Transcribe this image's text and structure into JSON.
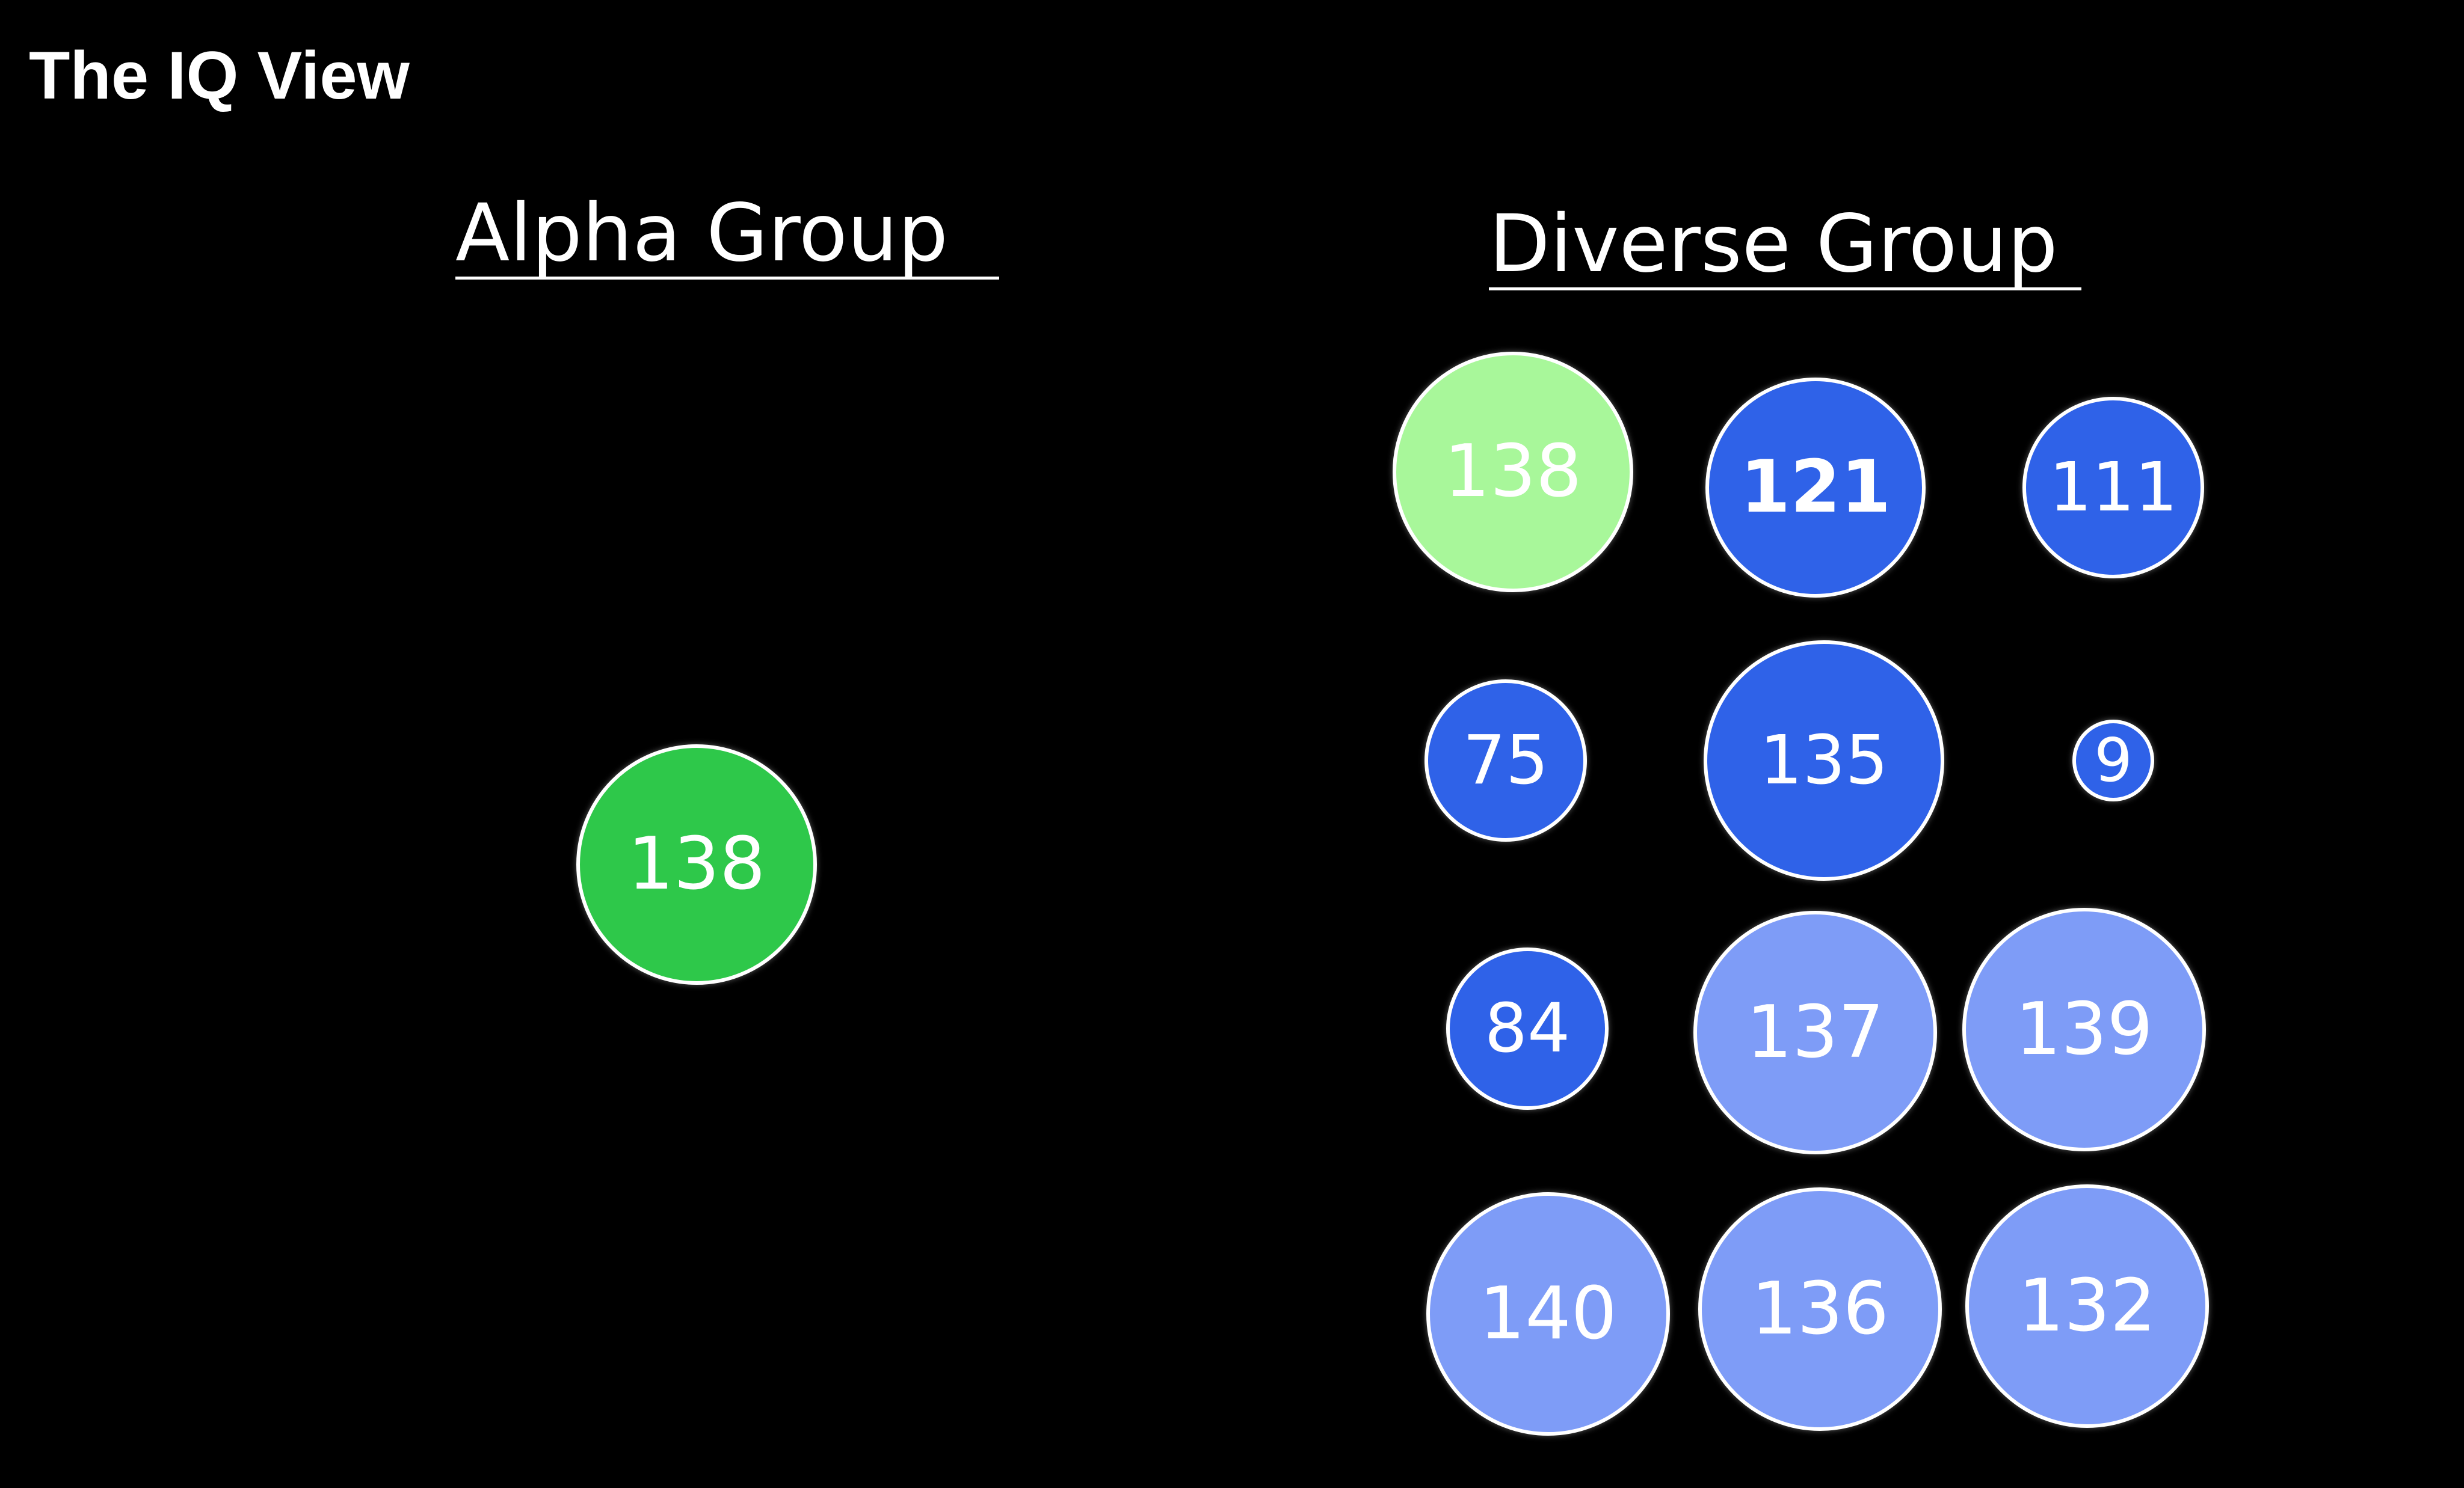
{
  "title": "The IQ View",
  "colors": {
    "background": "#000000",
    "alpha_member": "#2ec84a",
    "diverse_top_scorer": "#a8f79a",
    "low_score": "#2f62e8",
    "high_score": "#7e9cf7",
    "border": "#ffffff"
  },
  "groups": {
    "alpha": {
      "heading": "Alpha Group",
      "members": [
        {
          "iq": "138",
          "color": "#2ec84a"
        }
      ]
    },
    "diverse": {
      "heading": "Diverse Group",
      "members": [
        {
          "iq": "138",
          "color": "#a8f79a"
        },
        {
          "iq": "121",
          "color": "#2f62e8"
        },
        {
          "iq": "111",
          "color": "#2f62e8"
        },
        {
          "iq": "75",
          "color": "#2f62e8"
        },
        {
          "iq": "135",
          "color": "#2f62e8"
        },
        {
          "iq": "9",
          "color": "#2f62e8"
        },
        {
          "iq": "84",
          "color": "#2f62e8"
        },
        {
          "iq": "137",
          "color": "#7e9cf7"
        },
        {
          "iq": "139",
          "color": "#7e9cf7"
        },
        {
          "iq": "140",
          "color": "#7e9cf7"
        },
        {
          "iq": "136",
          "color": "#7e9cf7"
        },
        {
          "iq": "132",
          "color": "#7e9cf7"
        }
      ]
    }
  }
}
